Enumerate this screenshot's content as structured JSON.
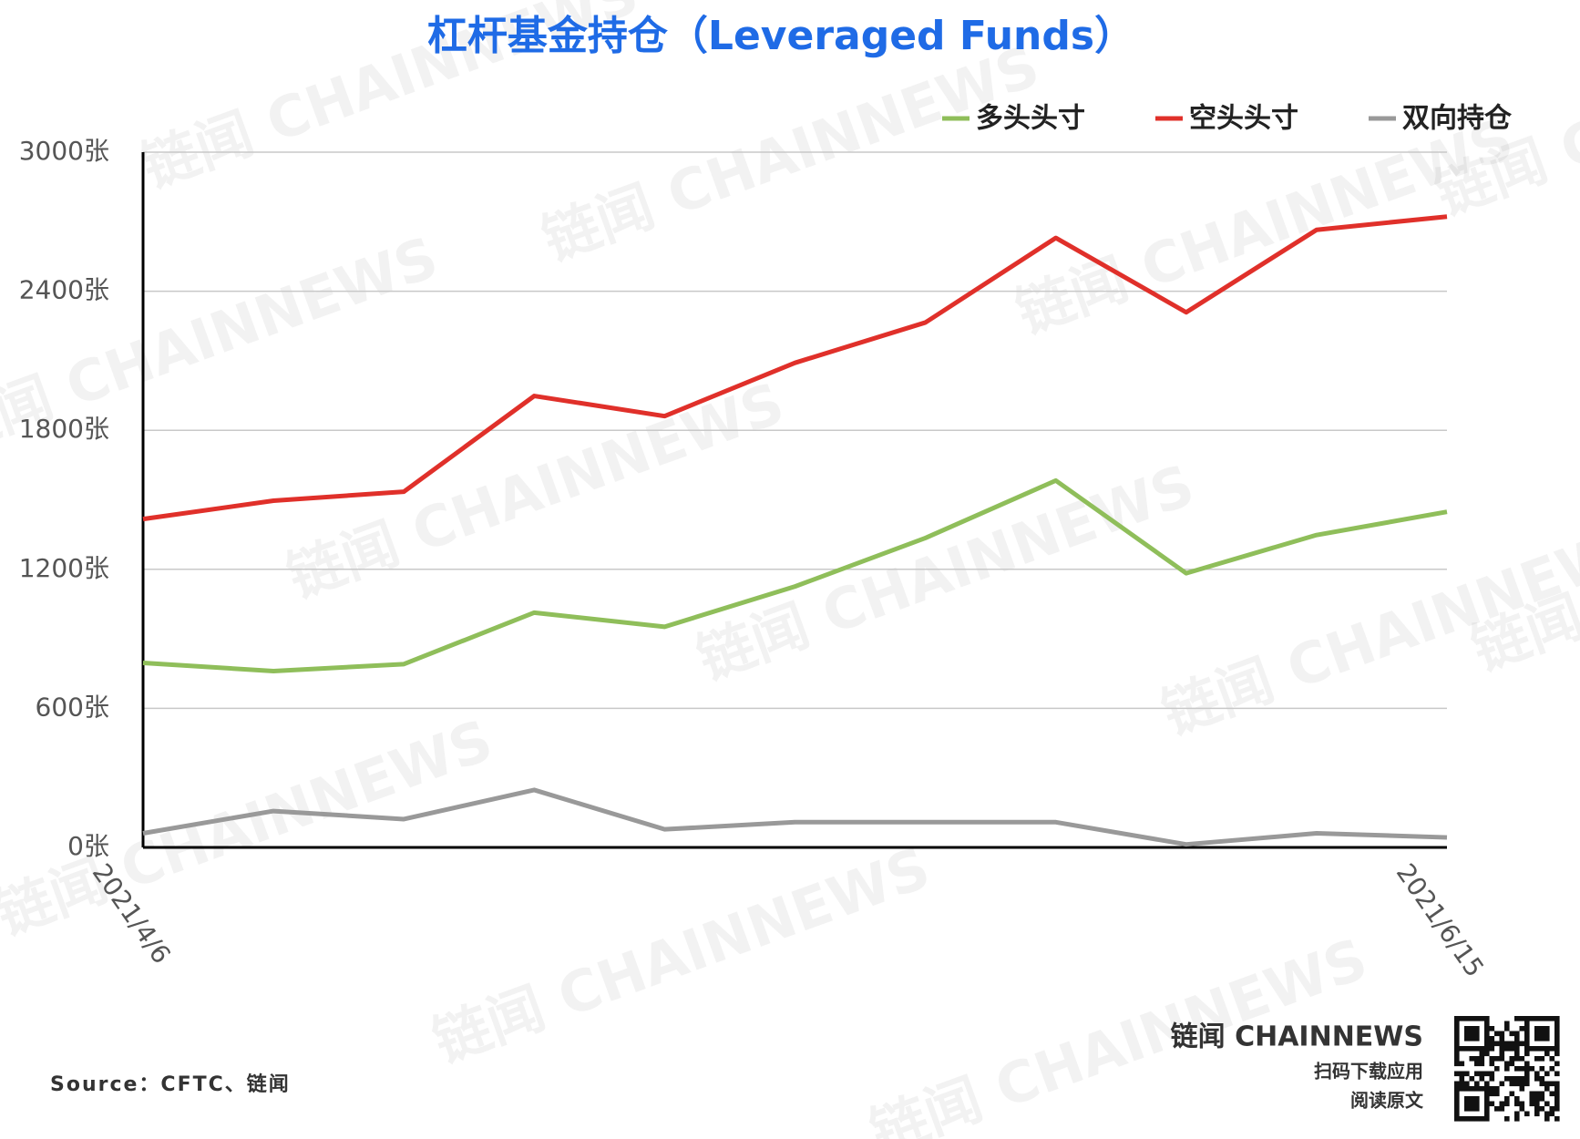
{
  "chart_data": {
    "type": "line",
    "title": "杠杆基金持仓（Leveraged Funds）",
    "categories": [
      "2021/4/6",
      null,
      null,
      null,
      null,
      null,
      null,
      null,
      null,
      null,
      "2021/6/15"
    ],
    "series": [
      {
        "name": "多头头寸",
        "color": "#8fbe5a",
        "values": [
          796,
          761,
          791,
          1013,
          952,
          1126,
          1335,
          1583,
          1183,
          1348,
          1448
        ]
      },
      {
        "name": "空头头寸",
        "color": "#e0302a",
        "values": [
          1417,
          1496,
          1535,
          1948,
          1861,
          2091,
          2265,
          2630,
          2309,
          2665,
          2722
        ]
      },
      {
        "name": "双向持仓",
        "color": "#999999",
        "values": [
          61,
          157,
          122,
          248,
          78,
          109,
          109,
          109,
          13,
          61,
          43
        ]
      }
    ],
    "ylim": [
      0,
      3000
    ],
    "yticks": [
      {
        "value": 0,
        "label": "0张"
      },
      {
        "value": 600,
        "label": "600张"
      },
      {
        "value": 1200,
        "label": "1200张"
      },
      {
        "value": 1800,
        "label": "1800张"
      },
      {
        "value": 2400,
        "label": "2400张"
      },
      {
        "value": 3000,
        "label": "3000张"
      }
    ],
    "grid": true,
    "legend": "top-right",
    "source": "Source：CFTC、链闻",
    "watermark": "链闻 CHAINNEWS",
    "brand": {
      "logo": "链闻 CHAINNEWS",
      "line1": "扫码下载应用",
      "line2": "阅读原文"
    }
  }
}
